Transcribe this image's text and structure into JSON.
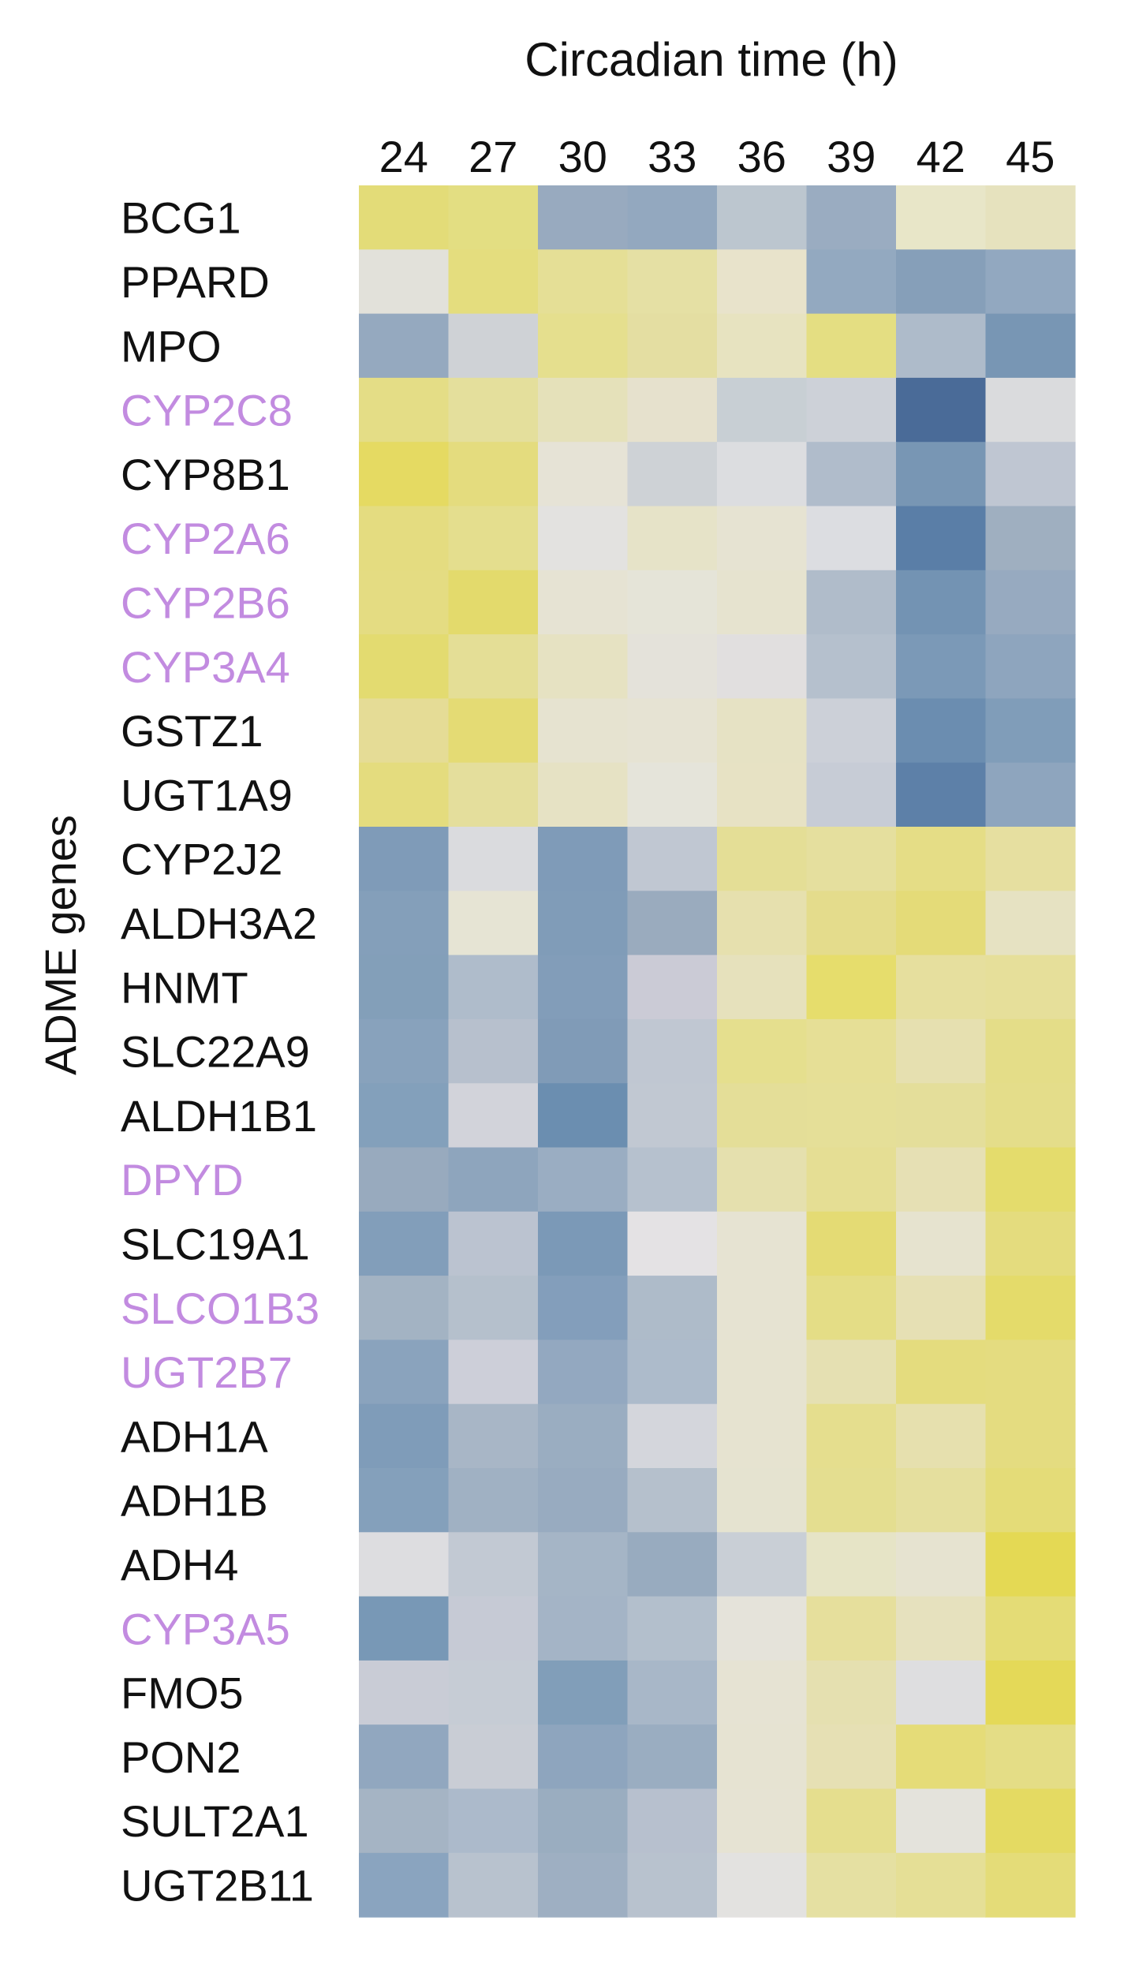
{
  "chart_data": {
    "type": "heatmap",
    "title": "Circadian time (h)",
    "ylabel": "ADME genes",
    "x": [
      "24",
      "27",
      "30",
      "33",
      "36",
      "39",
      "42",
      "45"
    ],
    "rows": [
      {
        "name": "BCG1",
        "highlight": false,
        "values": [
          "#e3dc78",
          "#e3de82",
          "#98aabf",
          "#93a8bf",
          "#bcc6cf",
          "#9aacc1",
          "#e8e6c8",
          "#e6e2be"
        ]
      },
      {
        "name": "PPARD",
        "highlight": false,
        "values": [
          "#e2e1da",
          "#e4dd7e",
          "#e5df96",
          "#e5e0a4",
          "#e8e3cb",
          "#93a9c0",
          "#869fb9",
          "#92a8c0"
        ]
      },
      {
        "name": "MPO",
        "highlight": false,
        "values": [
          "#95a9bf",
          "#cfd2d6",
          "#e5df8e",
          "#e4dea2",
          "#e7e3c0",
          "#e4de82",
          "#aebbca",
          "#7896b4"
        ]
      },
      {
        "name": "CYP2C8",
        "highlight": true,
        "values": [
          "#e4dd86",
          "#e4df9c",
          "#e5e1ba",
          "#e6e1cd",
          "#c8cfd4",
          "#cdd1d8",
          "#4a6b98",
          "#dadbdd"
        ]
      },
      {
        "name": "CYP8B1",
        "highlight": false,
        "values": [
          "#e5da62",
          "#e4dc7e",
          "#e6e3d6",
          "#ced2d6",
          "#dcdde0",
          "#b0bccb",
          "#7896b4",
          "#bfc6d2"
        ]
      },
      {
        "name": "CYP2A6",
        "highlight": true,
        "values": [
          "#e4dc80",
          "#e4de8e",
          "#e3e2e0",
          "#e6e3c8",
          "#e6e3d2",
          "#dcdde1",
          "#5a7ea7",
          "#9fafc0"
        ]
      },
      {
        "name": "CYP2B6",
        "highlight": true,
        "values": [
          "#e4dc82",
          "#e3da6c",
          "#e6e3d3",
          "#e5e4d8",
          "#e6e3cf",
          "#b0bcca",
          "#7393b3",
          "#97aac0"
        ]
      },
      {
        "name": "CYP3A4",
        "highlight": true,
        "values": [
          "#e3db70",
          "#e4de96",
          "#e6e2c2",
          "#e4e2da",
          "#e1dfdf",
          "#b5c0cd",
          "#7b99b7",
          "#8ea5be"
        ]
      },
      {
        "name": "GSTZ1",
        "highlight": false,
        "values": [
          "#e5dc96",
          "#e4db74",
          "#e6e3d0",
          "#e6e3d3",
          "#e6e2c4",
          "#ccd0d8",
          "#6b8db0",
          "#809db9"
        ]
      },
      {
        "name": "UGT1A9",
        "highlight": false,
        "values": [
          "#e4dc7e",
          "#e4de9c",
          "#e6e2c4",
          "#e5e4da",
          "#e7e2c4",
          "#c7ccd6",
          "#5d80a8",
          "#8ea5be"
        ]
      },
      {
        "name": "CYP2J2",
        "highlight": false,
        "values": [
          "#7f9bb8",
          "#dadbde",
          "#7f9bb8",
          "#c0c7d2",
          "#e4de96",
          "#e5df9e",
          "#e5dd86",
          "#e6dfa0"
        ]
      },
      {
        "name": "ALDH3A2",
        "highlight": false,
        "values": [
          "#849fba",
          "#e6e4d4",
          "#809cb8",
          "#9aabbe",
          "#e6e0ae",
          "#e4dc8c",
          "#e4db78",
          "#e6e2c2"
        ]
      },
      {
        "name": "HNMT",
        "highlight": false,
        "values": [
          "#839fb9",
          "#afbccb",
          "#829db9",
          "#cbcbd6",
          "#e6e1bc",
          "#e6dd6c",
          "#e6df9e",
          "#e6df9a"
        ]
      },
      {
        "name": "SLC22A9",
        "highlight": false,
        "values": [
          "#88a2bc",
          "#b7c0cd",
          "#809bb7",
          "#c0c7d2",
          "#e5df8e",
          "#e6df96",
          "#e6e0b0",
          "#e4dd88"
        ]
      },
      {
        "name": "ALDH1B1",
        "highlight": false,
        "values": [
          "#83a0bb",
          "#d2d3da",
          "#6b8eb0",
          "#c1c8d2",
          "#e4de98",
          "#e5df98",
          "#e4de9a",
          "#e4dd8a"
        ]
      },
      {
        "name": "DPYD",
        "highlight": true,
        "values": [
          "#98aabe",
          "#8ea5bd",
          "#9aadc2",
          "#b6c1ce",
          "#e5e0ae",
          "#e5de94",
          "#e6e0b4",
          "#e4dc6c"
        ]
      },
      {
        "name": "SLC19A1",
        "highlight": false,
        "values": [
          "#829eba",
          "#bbc3d0",
          "#7b99b7",
          "#e4e2e4",
          "#e6e3d2",
          "#e4db74",
          "#e6e3cf",
          "#e4dc7e"
        ]
      },
      {
        "name": "SLCO1B3",
        "highlight": true,
        "values": [
          "#a3b3c3",
          "#b5c0cc",
          "#839ebb",
          "#aebbc9",
          "#e6e3d2",
          "#e4dd86",
          "#e6e0b4",
          "#e4db6a"
        ]
      },
      {
        "name": "UGT2B7",
        "highlight": true,
        "values": [
          "#8aa3bd",
          "#cdcfd9",
          "#93a8c0",
          "#adbbcb",
          "#e6e3d0",
          "#e5e0b2",
          "#e4dc7e",
          "#e4dc80"
        ]
      },
      {
        "name": "ADH1A",
        "highlight": false,
        "values": [
          "#7f9cb9",
          "#a8b6c6",
          "#9aadc1",
          "#d4d6dc",
          "#e6e3d0",
          "#e5de8e",
          "#e6e0ae",
          "#e4dc80"
        ]
      },
      {
        "name": "ADH1B",
        "highlight": false,
        "values": [
          "#84a0bb",
          "#a0b1c3",
          "#98abc0",
          "#b5c0cc",
          "#e5e3d0",
          "#e4de90",
          "#e5df9e",
          "#e4dc78"
        ]
      },
      {
        "name": "ADH4",
        "highlight": false,
        "values": [
          "#dddde0",
          "#c2c9d3",
          "#a5b5c6",
          "#98abbf",
          "#c9cfd6",
          "#e6e4c6",
          "#e6e3d0",
          "#e4d954"
        ]
      },
      {
        "name": "CYP3A5",
        "highlight": true,
        "values": [
          "#7898b6",
          "#c6cad5",
          "#a4b4c6",
          "#b3bfcc",
          "#e5e3da",
          "#e6df9c",
          "#e6e1be",
          "#e4dc76"
        ]
      },
      {
        "name": "FMO5",
        "highlight": false,
        "values": [
          "#c9ccd6",
          "#c6ccd5",
          "#819eb9",
          "#a8b7c8",
          "#e6e3d3",
          "#e5e0b0",
          "#dedee0",
          "#e4d958"
        ]
      },
      {
        "name": "PON2",
        "highlight": false,
        "values": [
          "#91a7bf",
          "#c9cdd5",
          "#8ea5be",
          "#9aadc1",
          "#e6e3d2",
          "#e6e0b4",
          "#e5dc78",
          "#e4dd86"
        ]
      },
      {
        "name": "SULT2A1",
        "highlight": false,
        "values": [
          "#a5b4c4",
          "#acbacb",
          "#9aadc0",
          "#b7c0ce",
          "#e6e3d3",
          "#e5de8e",
          "#e4e3dc",
          "#e4da62"
        ]
      },
      {
        "name": "UGT2B11",
        "highlight": false,
        "values": [
          "#8aa4bf",
          "#b8c2ce",
          "#9eafc2",
          "#b8c2ce",
          "#e3e2e0",
          "#e5e0a2",
          "#e5df96",
          "#e4dc78"
        ]
      }
    ]
  },
  "style": {
    "label_color": "#111111",
    "highlight_color": "#c28be0"
  }
}
